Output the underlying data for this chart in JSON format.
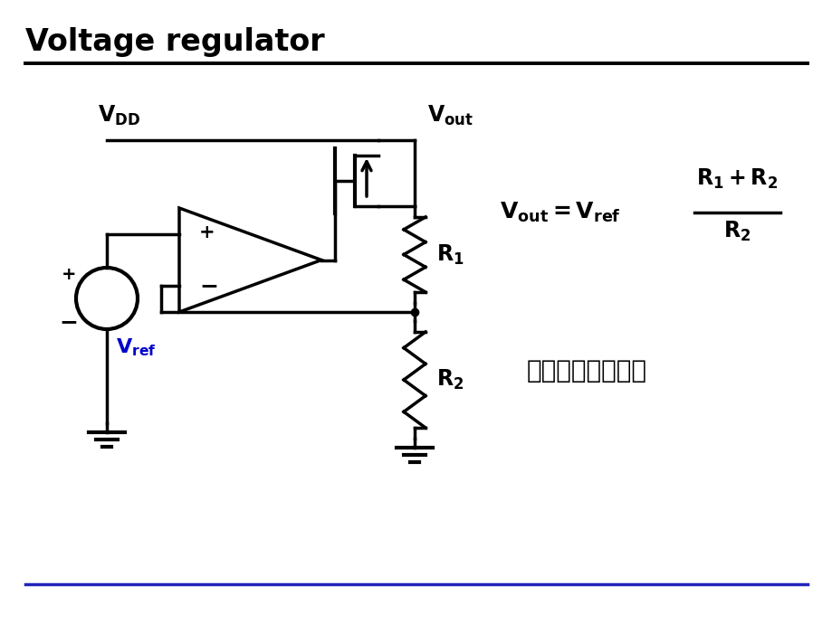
{
  "title": "Voltage regulator",
  "title_fontsize": 24,
  "title_fontweight": "bold",
  "background_color": "#ffffff",
  "line_color": "#000000",
  "top_line_color": "#000000",
  "bottom_line_color": "#2222bb",
  "chinese_text": "基准电压运用举例",
  "chinese_color": "#000000",
  "chinese_fontsize": 20,
  "vref_color": "#0000cc",
  "lw": 2.5,
  "fig_w": 9.2,
  "fig_h": 6.9,
  "dpi": 100
}
